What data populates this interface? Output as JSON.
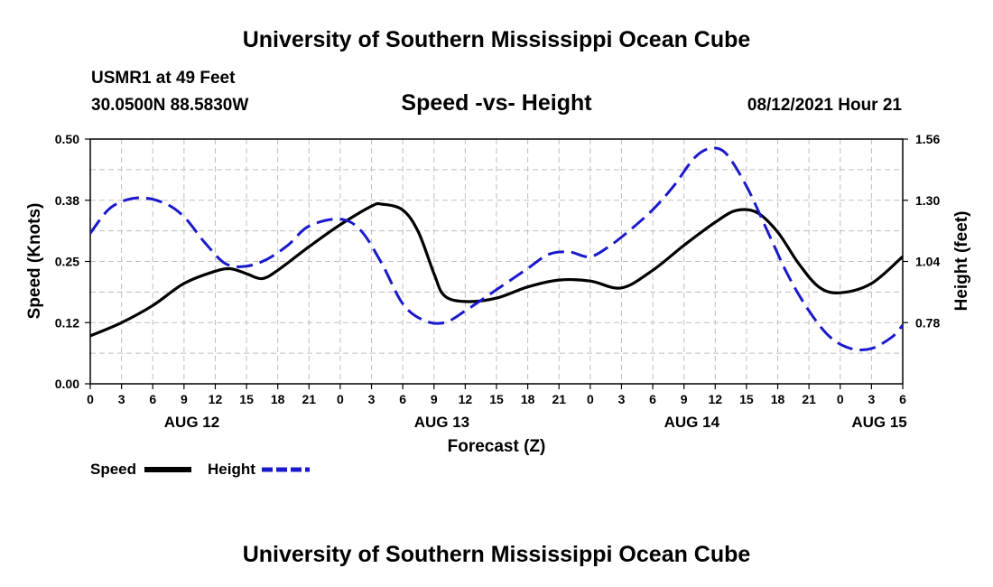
{
  "header": {
    "title": "University of Southern Mississippi Ocean Cube",
    "station": "USMR1 at 49 Feet",
    "coordinates": "30.0500N  88.5830W",
    "chart_title": "Speed -vs- Height",
    "datetime": "08/12/2021 Hour 21"
  },
  "footer": {
    "title": "University of Southern Mississippi Ocean Cube"
  },
  "legend": {
    "speed_label": "Speed",
    "height_label": "Height"
  },
  "colors": {
    "speed": "#000000",
    "height": "#1a1acc",
    "grid": "#bfbfbf"
  },
  "chart_data": {
    "type": "line",
    "title": "Speed -vs- Height",
    "xlabel": "Forecast (Z)",
    "ylabel": "Speed (Knots)",
    "y2label": "Height (feet)",
    "xlim": [
      0,
      78
    ],
    "ylim": [
      0,
      0.5
    ],
    "y2lim": [
      0.52,
      1.56
    ],
    "yticks": [
      {
        "value": 0,
        "label": "0.00"
      },
      {
        "value": 0.125,
        "label": "0.12"
      },
      {
        "value": 0.25,
        "label": "0.25"
      },
      {
        "value": 0.375,
        "label": "0.38"
      },
      {
        "value": 0.5,
        "label": "0.50"
      }
    ],
    "y2ticks": [
      {
        "value": 0.78,
        "label": "0.78"
      },
      {
        "value": 1.04,
        "label": "1.04"
      },
      {
        "value": 1.3,
        "label": "1.30"
      },
      {
        "value": 1.56,
        "label": "1.56"
      }
    ],
    "xticks": [
      {
        "value": 0,
        "label": "0"
      },
      {
        "value": 3,
        "label": "3"
      },
      {
        "value": 6,
        "label": "6"
      },
      {
        "value": 9,
        "label": "9"
      },
      {
        "value": 12,
        "label": "12"
      },
      {
        "value": 15,
        "label": "15"
      },
      {
        "value": 18,
        "label": "18"
      },
      {
        "value": 21,
        "label": "21"
      },
      {
        "value": 24,
        "label": "0"
      },
      {
        "value": 27,
        "label": "3"
      },
      {
        "value": 30,
        "label": "6"
      },
      {
        "value": 33,
        "label": "9"
      },
      {
        "value": 36,
        "label": "12"
      },
      {
        "value": 39,
        "label": "15"
      },
      {
        "value": 42,
        "label": "18"
      },
      {
        "value": 45,
        "label": "21"
      },
      {
        "value": 48,
        "label": "0"
      },
      {
        "value": 51,
        "label": "3"
      },
      {
        "value": 54,
        "label": "6"
      },
      {
        "value": 57,
        "label": "9"
      },
      {
        "value": 60,
        "label": "12"
      },
      {
        "value": 63,
        "label": "15"
      },
      {
        "value": 66,
        "label": "18"
      },
      {
        "value": 69,
        "label": "21"
      },
      {
        "value": 72,
        "label": "0"
      },
      {
        "value": 75,
        "label": "3"
      },
      {
        "value": 78,
        "label": "6"
      }
    ],
    "day_labels": [
      {
        "value": 9.75,
        "label": "AUG 12"
      },
      {
        "value": 33.75,
        "label": "AUG 13"
      },
      {
        "value": 57.75,
        "label": "AUG 14"
      },
      {
        "value": 75.75,
        "label": "AUG 15"
      }
    ],
    "grid": true,
    "series": [
      {
        "name": "Speed",
        "axis": "left",
        "style": "solid",
        "x": [
          0,
          3,
          6,
          9,
          12,
          13.5,
          15,
          16.5,
          18,
          21,
          24,
          27,
          28,
          30,
          31.5,
          33,
          34,
          36,
          39,
          42,
          45,
          48,
          51,
          54,
          57,
          60,
          62,
          64,
          66,
          68,
          70,
          72,
          75,
          78
        ],
        "y": [
          0.098,
          0.125,
          0.16,
          0.205,
          0.23,
          0.235,
          0.225,
          0.215,
          0.232,
          0.28,
          0.325,
          0.363,
          0.367,
          0.355,
          0.31,
          0.225,
          0.18,
          0.168,
          0.175,
          0.198,
          0.212,
          0.21,
          0.196,
          0.232,
          0.283,
          0.33,
          0.354,
          0.35,
          0.31,
          0.246,
          0.197,
          0.186,
          0.205,
          0.26
        ]
      },
      {
        "name": "Height",
        "axis": "right",
        "style": "dashed",
        "x": [
          0,
          2,
          4.5,
          7,
          9,
          11,
          13,
          15,
          17,
          19,
          21,
          24,
          26,
          28,
          30,
          32,
          34,
          36,
          39,
          42,
          44,
          46,
          48,
          50,
          52,
          54,
          56,
          58,
          59.5,
          61,
          63,
          65,
          67,
          69,
          71,
          73,
          75,
          77,
          78
        ],
        "y": [
          1.16,
          1.27,
          1.31,
          1.29,
          1.23,
          1.12,
          1.03,
          1.02,
          1.05,
          1.11,
          1.19,
          1.22,
          1.17,
          1.03,
          0.86,
          0.79,
          0.78,
          0.83,
          0.92,
          1.01,
          1.07,
          1.08,
          1.06,
          1.11,
          1.18,
          1.26,
          1.36,
          1.48,
          1.52,
          1.5,
          1.36,
          1.17,
          0.98,
          0.83,
          0.72,
          0.67,
          0.67,
          0.72,
          0.77
        ]
      }
    ]
  }
}
